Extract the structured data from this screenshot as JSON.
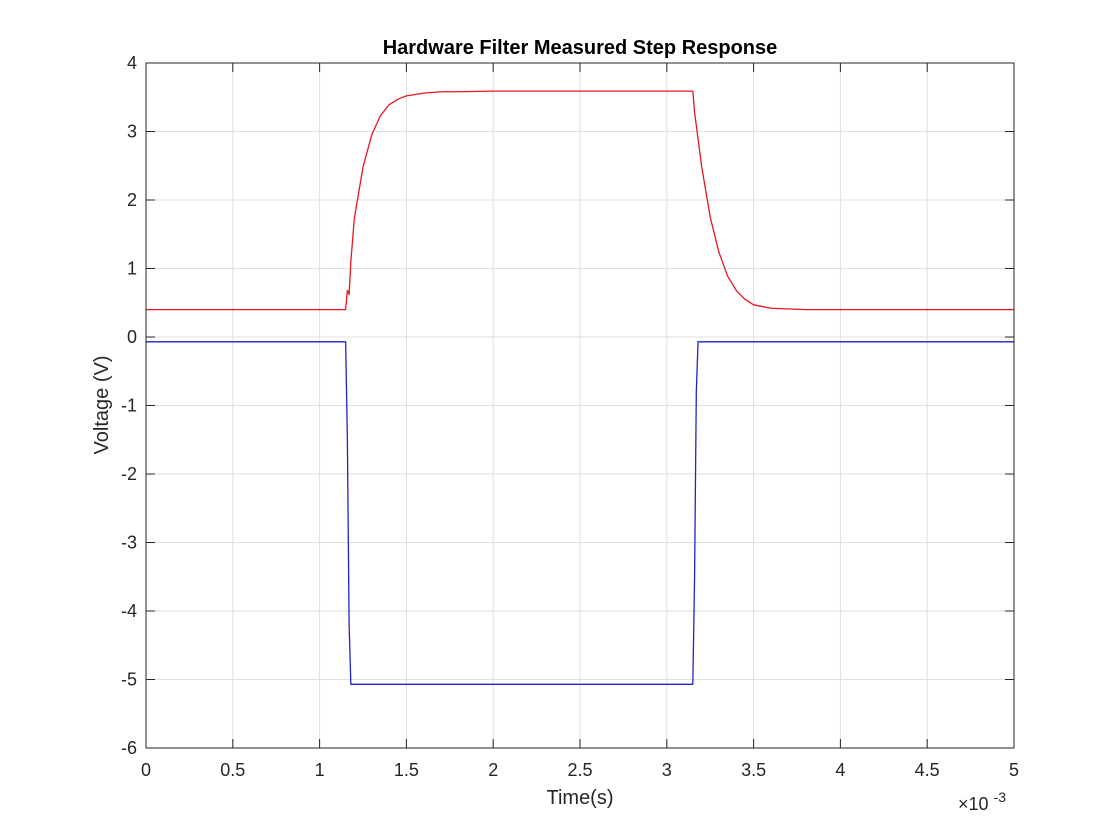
{
  "chart_data": {
    "type": "line",
    "title": "Hardware Filter Measured Step Response",
    "xlabel": "Time(s)",
    "ylabel": "Voltage (V)",
    "x_exponent_prefix": "×10",
    "x_exponent_power": "-3",
    "xlim": [
      0,
      5
    ],
    "ylim": [
      -6,
      4
    ],
    "x_scale_factor": 0.001,
    "xticks": [
      0,
      0.5,
      1,
      1.5,
      2,
      2.5,
      3,
      3.5,
      4,
      4.5,
      5
    ],
    "xtick_labels": [
      "0",
      "0.5",
      "1",
      "1.5",
      "2",
      "2.5",
      "3",
      "3.5",
      "4",
      "4.5",
      "5"
    ],
    "yticks": [
      -6,
      -5,
      -4,
      -3,
      -2,
      -1,
      0,
      1,
      2,
      3,
      4
    ],
    "ytick_labels": [
      "-6",
      "-5",
      "-4",
      "-3",
      "-2",
      "-1",
      "0",
      "1",
      "2",
      "3",
      "4"
    ],
    "grid": true,
    "legend": "none",
    "series": [
      {
        "color": "#e8161d",
        "x": [
          0,
          0.5,
          1.0,
          1.15,
          1.16,
          1.17,
          1.18,
          1.2,
          1.25,
          1.3,
          1.35,
          1.4,
          1.45,
          1.5,
          1.6,
          1.7,
          1.8,
          2.0,
          2.5,
          3.0,
          3.15,
          3.16,
          3.2,
          3.25,
          3.3,
          3.35,
          3.4,
          3.45,
          3.5,
          3.6,
          3.7,
          3.8,
          4.0,
          4.5,
          5.0
        ],
        "values": [
          0.4,
          0.4,
          0.4,
          0.4,
          0.68,
          0.62,
          1.1,
          1.73,
          2.48,
          2.95,
          3.23,
          3.39,
          3.47,
          3.52,
          3.56,
          3.58,
          3.58,
          3.59,
          3.59,
          3.59,
          3.59,
          3.28,
          2.5,
          1.75,
          1.24,
          0.89,
          0.68,
          0.55,
          0.47,
          0.42,
          0.41,
          0.4,
          0.4,
          0.4,
          0.4
        ]
      },
      {
        "color": "#1f24c8",
        "x": [
          0,
          0.5,
          1.0,
          1.15,
          1.16,
          1.17,
          1.18,
          1.5,
          2.0,
          2.5,
          3.0,
          3.15,
          3.16,
          3.17,
          3.18,
          3.5,
          4.0,
          4.5,
          5.0
        ],
        "values": [
          -0.07,
          -0.07,
          -0.07,
          -0.07,
          -1.5,
          -4.2,
          -5.07,
          -5.07,
          -5.07,
          -5.07,
          -5.07,
          -5.07,
          -3.5,
          -0.8,
          -0.07,
          -0.07,
          -0.07,
          -0.07,
          -0.07
        ]
      }
    ]
  }
}
